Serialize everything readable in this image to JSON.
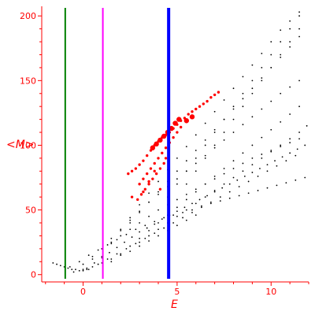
{
  "chart_data": {
    "type": "scatter",
    "title": "",
    "xlabel": "E",
    "ylabel": "<M>",
    "xlim": [
      -2.2,
      12
    ],
    "ylim": [
      -2,
      205
    ],
    "xticks": [
      0,
      5,
      10
    ],
    "yticks": [
      0,
      50,
      100,
      150,
      200
    ],
    "grid": false,
    "axis_color": "#ff0000",
    "vertical_lines": [
      {
        "x": -0.95,
        "color": "#008000"
      },
      {
        "x": 1.05,
        "color": "#ff00ff"
      },
      {
        "x": 4.55,
        "color": "#0000ff"
      }
    ],
    "series": [
      {
        "color": "#000000",
        "marker": "small-dot",
        "x": [
          -1.6,
          -1.4,
          -1.2,
          -1.0,
          -0.8,
          -0.6,
          -0.4,
          -0.2,
          0.0,
          0.2,
          -0.7,
          -0.2,
          0.3,
          0.8,
          1.3,
          1.8,
          2.3,
          2.8,
          3.3,
          3.8,
          4.3,
          4.8,
          5.3,
          5.8,
          6.3,
          6.8,
          7.3,
          7.8,
          8.3,
          8.8,
          9.3,
          9.8,
          10.3,
          10.8,
          11.3,
          11.8,
          0.0,
          0.5,
          1.0,
          1.5,
          2.0,
          2.5,
          3.0,
          3.5,
          4.0,
          4.5,
          5.0,
          5.5,
          6.0,
          6.5,
          7.0,
          7.5,
          8.0,
          8.5,
          9.0,
          9.5,
          10.0,
          10.5,
          11.0,
          11.5,
          0.5,
          1.0,
          1.5,
          2.0,
          2.5,
          3.0,
          3.5,
          4.0,
          4.5,
          5.0,
          5.5,
          6.0,
          6.5,
          7.0,
          7.5,
          8.0,
          8.5,
          9.0,
          9.5,
          10.0,
          10.5,
          11.0,
          11.5,
          1.0,
          1.5,
          2.0,
          2.5,
          3.0,
          3.5,
          4.0,
          4.5,
          5.0,
          5.5,
          6.0,
          6.5,
          7.0,
          7.5,
          8.0,
          8.5,
          9.0,
          9.5,
          10.0,
          10.5,
          11.0,
          11.5,
          2.5,
          3.0,
          3.5,
          4.0,
          4.5,
          5.0,
          5.5,
          6.0,
          6.5,
          7.0,
          7.5,
          8.0,
          8.5,
          9.0,
          9.5,
          10.0,
          10.5,
          11.0,
          11.5,
          4.5,
          5.0,
          5.5,
          6.0,
          6.5,
          7.0,
          7.5,
          8.0,
          8.5,
          9.0,
          9.5,
          10.0,
          10.5,
          11.0,
          11.5,
          5.5,
          6.0,
          6.5,
          7.0,
          7.5,
          8.0,
          8.5,
          9.0,
          9.5,
          10.0,
          10.5,
          11.0,
          11.5,
          1.5,
          2.0,
          2.5,
          3.0,
          3.5,
          4.0,
          4.5,
          5.0,
          5.5,
          6.0,
          6.5,
          7.0,
          7.5,
          8.0,
          8.5,
          9.0,
          9.5,
          10.0,
          10.5,
          11.0,
          11.5,
          0.3,
          0.8,
          1.3,
          1.8,
          2.3,
          2.8,
          3.3,
          3.8,
          4.3,
          4.8,
          5.3,
          5.8,
          6.3,
          6.8,
          7.3,
          7.8,
          8.3,
          8.8,
          9.3,
          9.8,
          10.3,
          10.8,
          11.3,
          0.2,
          0.6,
          1.0,
          1.4,
          1.8,
          2.2,
          2.6,
          3.0,
          3.4,
          3.8,
          4.2,
          4.6,
          5.0,
          5.4,
          5.8,
          6.2,
          6.6,
          7.0,
          7.4,
          7.8,
          8.2,
          8.6,
          9.0,
          9.4,
          9.8,
          10.2,
          10.6,
          11.0,
          11.4,
          11.8,
          -0.5,
          0.0,
          0.5,
          1.0,
          1.5,
          2.0,
          2.5,
          3.0,
          3.5,
          4.0,
          4.5,
          5.0,
          5.5,
          6.0,
          3.0,
          3.5,
          4.0,
          4.5,
          5.0,
          5.5,
          6.0,
          6.5,
          7.0,
          7.5,
          8.0,
          8.5,
          9.0,
          9.5,
          10.0,
          10.5,
          11.0,
          11.5,
          11.9
        ],
        "y": [
          9,
          8,
          7,
          6,
          5,
          4,
          4,
          3,
          3,
          4,
          6,
          10,
          15,
          19,
          23,
          27,
          31,
          35,
          38,
          41,
          44,
          46,
          48,
          50,
          53,
          55,
          57,
          59,
          61,
          63,
          65,
          67,
          69,
          71,
          73,
          75,
          8,
          14,
          20,
          25,
          30,
          35,
          40,
          45,
          50,
          54,
          58,
          62,
          66,
          70,
          74,
          78,
          82,
          86,
          90,
          93,
          96,
          99,
          102,
          105,
          12,
          20,
          28,
          35,
          42,
          49,
          56,
          62,
          68,
          74,
          80,
          86,
          92,
          98,
          104,
          110,
          116,
          122,
          128,
          134,
          140,
          145,
          150,
          14,
          24,
          34,
          44,
          54,
          63,
          72,
          81,
          90,
          99,
          108,
          117,
          126,
          135,
          144,
          153,
          162,
          171,
          180,
          189,
          196,
          203,
          40,
          48,
          56,
          64,
          72,
          80,
          88,
          96,
          104,
          112,
          120,
          128,
          136,
          144,
          152,
          160,
          168,
          176,
          184,
          60,
          70,
          80,
          90,
          100,
          110,
          120,
          130,
          140,
          150,
          160,
          170,
          180,
          190,
          200,
          70,
          80,
          90,
          100,
          110,
          120,
          130,
          140,
          150,
          160,
          170,
          180,
          190,
          10,
          16,
          22,
          28,
          34,
          40,
          46,
          52,
          58,
          64,
          70,
          76,
          82,
          88,
          94,
          100,
          106,
          112,
          118,
          124,
          130,
          4,
          8,
          12,
          16,
          20,
          24,
          28,
          32,
          36,
          40,
          44,
          48,
          52,
          56,
          60,
          64,
          68,
          72,
          76,
          80,
          84,
          88,
          92,
          5,
          9,
          13,
          17,
          21,
          25,
          29,
          33,
          36,
          39,
          43,
          46,
          49,
          52,
          55,
          58,
          61,
          64,
          67,
          70,
          73,
          76,
          79,
          82,
          85,
          88,
          91,
          94,
          97,
          100,
          2,
          4,
          6,
          9,
          12,
          15,
          18,
          22,
          26,
          30,
          34,
          38,
          42,
          46,
          25,
          30,
          35,
          40,
          45,
          50,
          55,
          60,
          65,
          70,
          75,
          80,
          85,
          90,
          95,
          100,
          105,
          110,
          115
        ]
      },
      {
        "color": "#ff0000",
        "marker": "dot",
        "x": [
          2.4,
          2.6,
          2.8,
          3.0,
          3.2,
          3.4,
          3.6,
          3.8,
          4.0,
          4.2,
          4.4,
          4.6,
          4.8,
          5.0,
          5.2,
          5.4,
          5.6,
          5.8,
          6.0,
          6.2,
          6.4,
          6.6,
          6.8,
          7.0,
          7.2,
          3.0,
          3.2,
          3.4,
          3.6,
          3.8,
          4.0,
          4.2,
          4.4,
          4.6,
          4.8,
          5.0,
          5.2,
          3.1,
          3.3,
          3.5,
          3.7,
          3.9,
          4.1,
          4.3,
          2.6,
          2.9,
          3.2,
          3.5,
          3.8,
          4.1,
          4.4
        ],
        "y": [
          78,
          80,
          82,
          85,
          88,
          92,
          96,
          100,
          103,
          106,
          108,
          110,
          113,
          116,
          119,
          121,
          124,
          126,
          128,
          130,
          132,
          134,
          137,
          139,
          141,
          70,
          74,
          78,
          82,
          86,
          90,
          94,
          98,
          102,
          106,
          110,
          114,
          62,
          66,
          70,
          74,
          78,
          82,
          86,
          60,
          58,
          64,
          72,
          80,
          66,
          90
        ]
      },
      {
        "color": "#ff0000",
        "marker": "big-dot",
        "x": [
          3.7,
          3.9,
          4.1,
          4.3,
          4.5,
          4.7,
          4.9,
          5.1,
          5.5,
          5.8
        ],
        "y": [
          98,
          101,
          104,
          107,
          110,
          113,
          117,
          120,
          119,
          122
        ]
      }
    ]
  }
}
